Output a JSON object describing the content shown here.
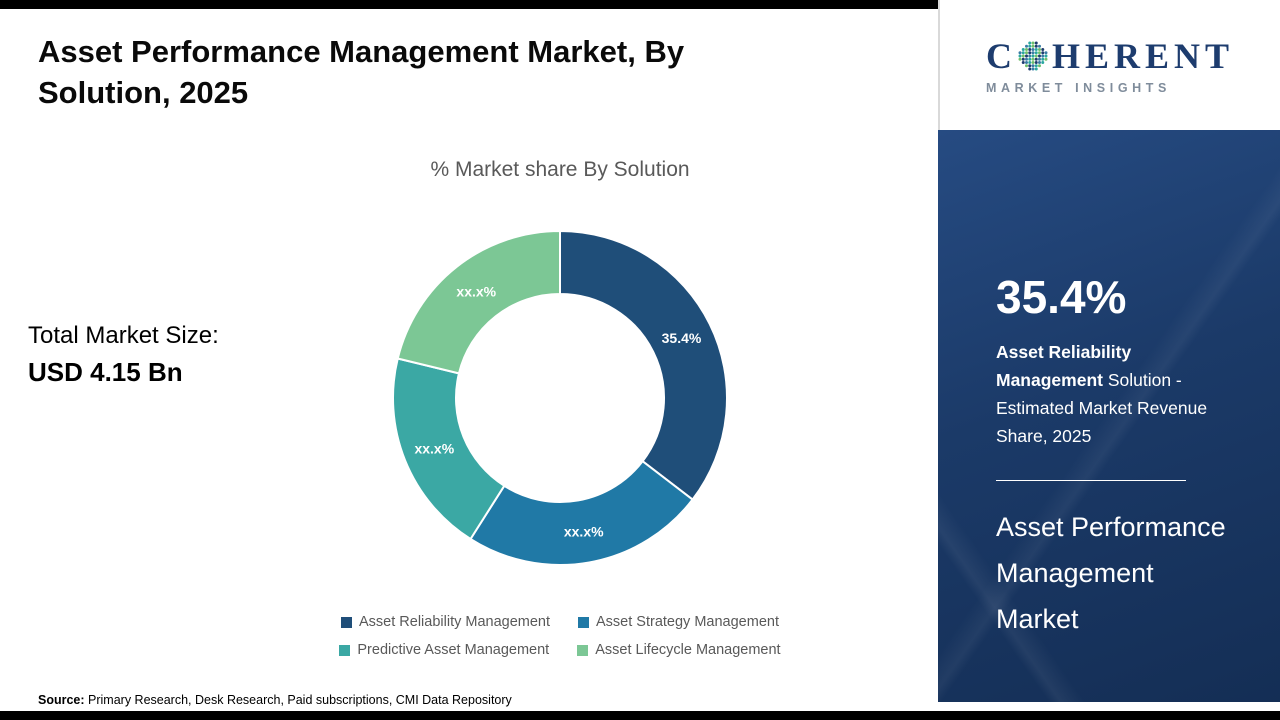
{
  "header": {
    "title": "Asset Performance Management Market, By Solution, 2025"
  },
  "left_panel": {
    "total_market_label": "Total Market Size:",
    "total_market_value": "USD 4.15 Bn"
  },
  "chart_data": {
    "type": "pie",
    "donut": true,
    "title": "% Market share By Solution",
    "categories": [
      "Asset Reliability Management",
      "Asset Strategy Management",
      "Predictive Asset Management",
      "Asset Lifecycle Management"
    ],
    "values": [
      35.4,
      23.6,
      19.8,
      21.2
    ],
    "slice_labels": [
      "35.4%",
      "xx.x%",
      "xx.x%",
      "xx.x%"
    ],
    "colors": [
      "#1f4e79",
      "#2079a6",
      "#3ba8a4",
      "#7cc795"
    ],
    "legend_position": "bottom",
    "start_angle_deg": 0
  },
  "legend": [
    {
      "label": "Asset Reliability Management",
      "color": "#1f4e79"
    },
    {
      "label": "Asset Strategy Management",
      "color": "#2079a6"
    },
    {
      "label": "Predictive Asset Management",
      "color": "#3ba8a4"
    },
    {
      "label": "Asset Lifecycle Management",
      "color": "#7cc795"
    }
  ],
  "footer": {
    "source_label": "Source:",
    "source_text": " Primary Research, Desk Research, Paid subscriptions, CMI Data Repository"
  },
  "sidebar": {
    "logo": {
      "c": "C",
      "rest": "HERENT",
      "subtitle": "MARKET INSIGHTS"
    },
    "panel_color": "#1b3a68",
    "stat_value": "35.4%",
    "stat_bold": "Asset Reliability Management",
    "stat_rest": " Solution - Estimated Market Revenue Share, 2025",
    "market_title": "Asset Performance Management Market"
  }
}
